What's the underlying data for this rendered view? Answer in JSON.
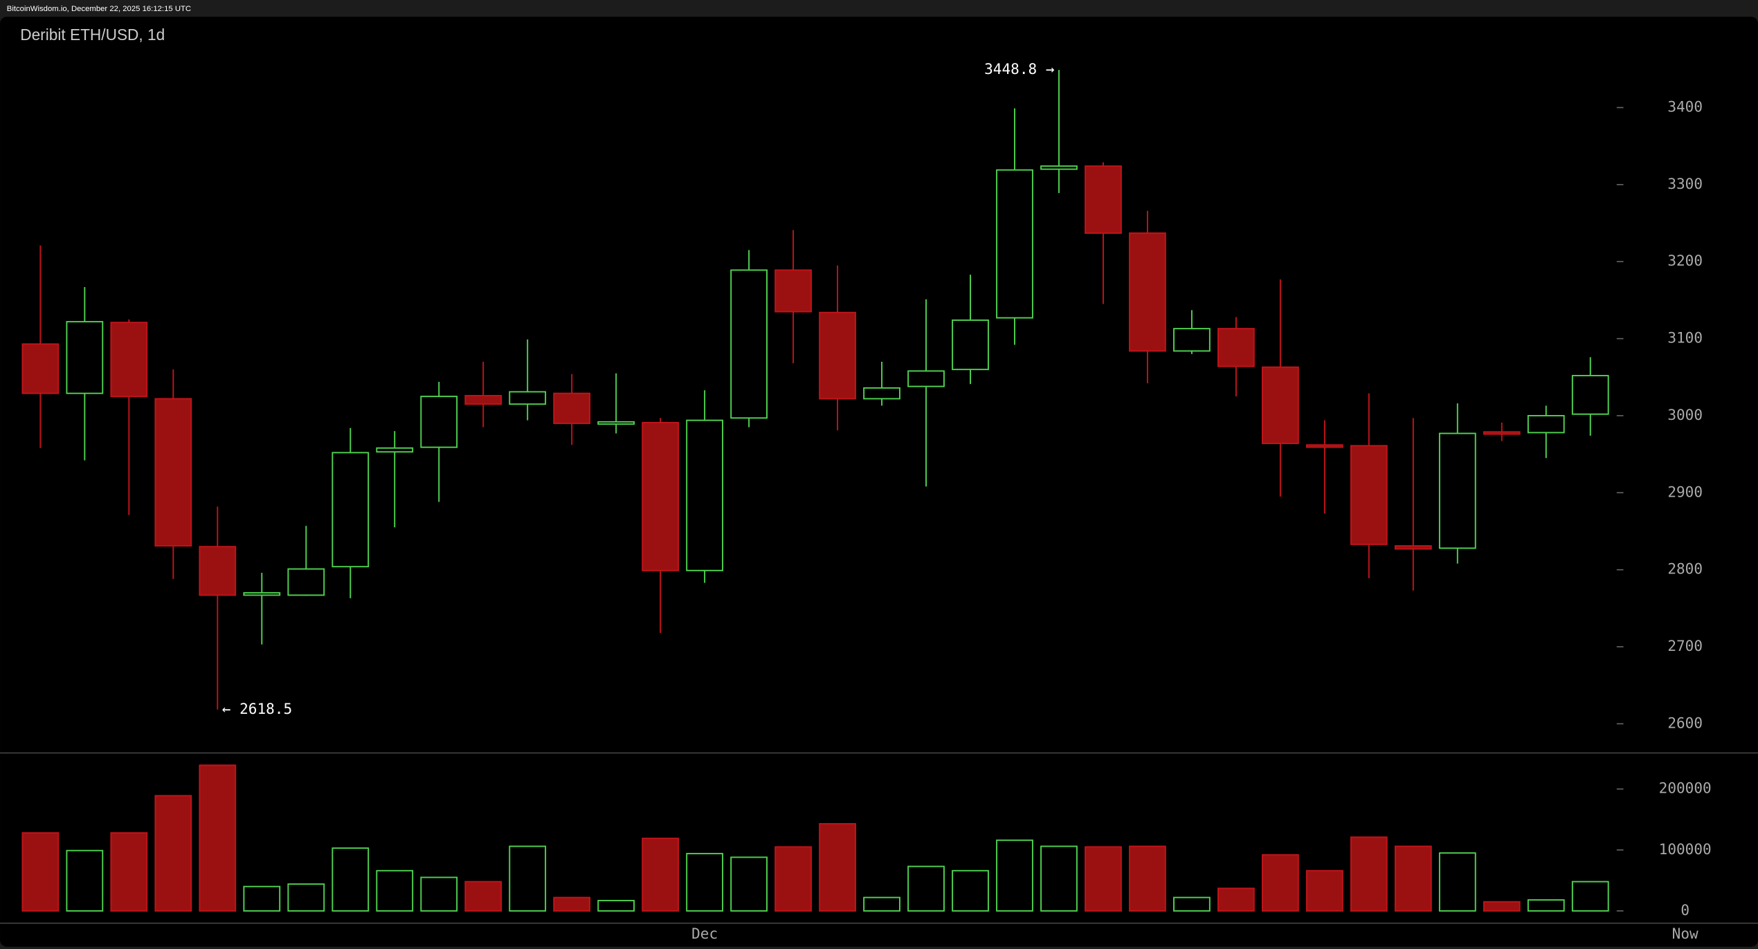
{
  "header": "BitcoinWisdom.io, December 22, 2025 16:12:15 UTC",
  "chart_data": {
    "type": "candlestick",
    "title": "Deribit ETH/USD, 1d",
    "categories": [
      null,
      null,
      null,
      null,
      null,
      null,
      null,
      null,
      null,
      null,
      null,
      null,
      null,
      null,
      null,
      "Dec",
      null,
      null,
      null,
      null,
      null,
      null,
      null,
      null,
      null,
      null,
      null,
      null,
      null,
      null,
      null,
      null,
      null,
      null,
      null,
      null
    ],
    "now_label": "Now",
    "open": [
      3093,
      3029,
      3121,
      3022,
      2830,
      2767,
      2767,
      2804,
      2953,
      2959,
      3026,
      3015,
      3029,
      2991,
      2991,
      2799,
      2997,
      3189,
      3134,
      3022,
      3038,
      3060,
      3127,
      3320,
      3324,
      3237,
      3084,
      3113,
      3063,
      2962,
      2961,
      2831,
      2828,
      2979,
      2978,
      3002
    ],
    "high": [
      3221,
      3167,
      3125,
      3060,
      2882,
      2796,
      2857,
      2984,
      2980,
      3044,
      3070,
      3099,
      3054,
      3055,
      2997,
      3033,
      3215,
      3241,
      3195,
      3070,
      3151,
      3183,
      3399,
      3448.8,
      3329,
      3266,
      3137,
      3128,
      3177,
      2994,
      3029,
      2997,
      3016,
      2991,
      3013,
      3076
    ],
    "low": [
      2958,
      2942,
      2871,
      2788,
      2618.5,
      2703,
      2766,
      2763,
      2855,
      2888,
      2985,
      2994,
      2962,
      2977,
      2718,
      2783,
      2985,
      3068,
      2981,
      3013,
      2908,
      3041,
      3092,
      3289,
      3145,
      3042,
      3080,
      3025,
      2895,
      2873,
      2789,
      2773,
      2808,
      2967,
      2945,
      2974
    ],
    "close": [
      3029,
      3122,
      3025,
      2831,
      2767,
      2770,
      2801,
      2952,
      2958,
      3025,
      3015,
      3031,
      2990,
      2992,
      2799,
      2994,
      3189,
      3135,
      3022,
      3036,
      3058,
      3124,
      3319,
      3324,
      3237,
      3084,
      3113,
      3064,
      2964,
      2961,
      2833,
      2827,
      2977,
      2977,
      3000,
      3052
    ],
    "up_color": "#4fd14f",
    "down_color": "#9b1111",
    "ylim": [
      2560,
      3480
    ],
    "yticks": [
      2600,
      2700,
      2800,
      2900,
      3000,
      3100,
      3200,
      3300,
      3400
    ],
    "annotations": [
      {
        "value": 3448.8,
        "label": "3448.8 →"
      },
      {
        "value": 2618.5,
        "label": "← 2618.5"
      }
    ],
    "volume": {
      "values": [
        128000,
        99000,
        128000,
        189000,
        239000,
        40000,
        44000,
        103000,
        66000,
        55000,
        48000,
        106000,
        22000,
        17000,
        119000,
        94000,
        88000,
        105000,
        143000,
        22000,
        73000,
        66000,
        116000,
        106000,
        105000,
        106000,
        22000,
        37000,
        92000,
        66000,
        121000,
        106000,
        95000,
        15000,
        18000,
        48000
      ],
      "ylim": [
        0,
        250000
      ],
      "yticks": [
        0,
        100000,
        200000
      ]
    }
  }
}
